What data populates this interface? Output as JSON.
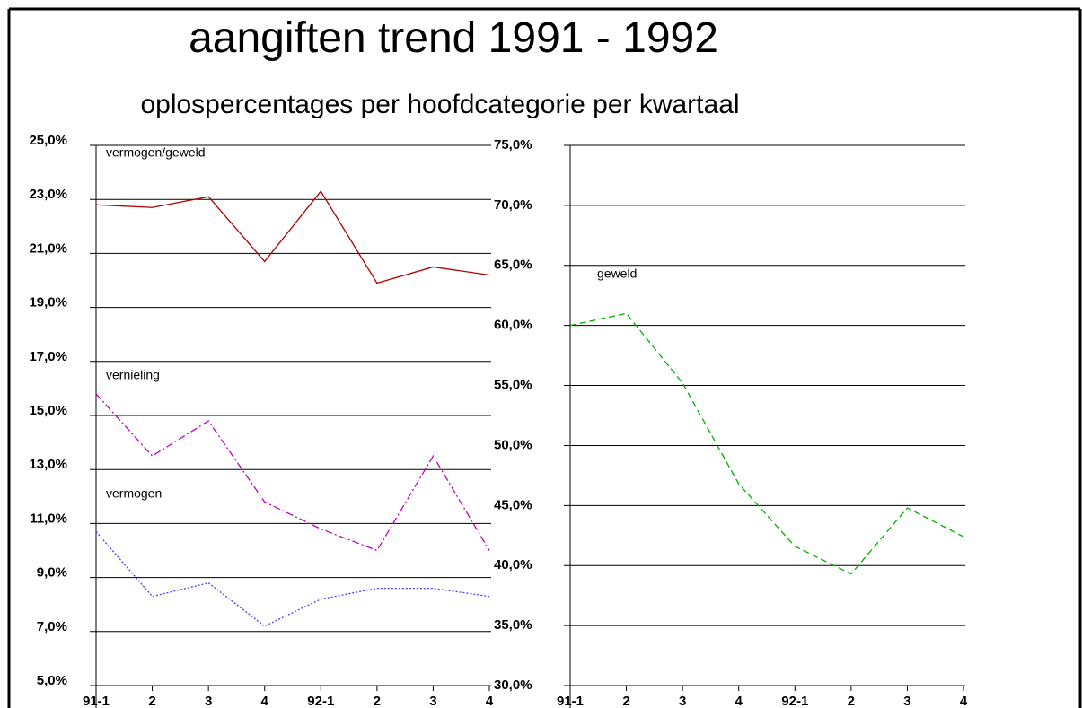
{
  "chart_data": [
    {
      "type": "line",
      "title": "aangiften trend 1991 - 1992",
      "subtitle": "oplospercentages per hoofdcategorie per kwartaal",
      "categories": [
        "91-1",
        "2",
        "3",
        "4",
        "92-1",
        "2",
        "3",
        "4"
      ],
      "ylim": [
        5,
        25
      ],
      "yticks": [
        {
          "value": 5,
          "label": "5,0%"
        },
        {
          "value": 7,
          "label": "7,0%"
        },
        {
          "value": 9,
          "label": "9,0%"
        },
        {
          "value": 11,
          "label": "11,0%"
        },
        {
          "value": 13,
          "label": "13,0%"
        },
        {
          "value": 15,
          "label": "15,0%"
        },
        {
          "value": 17,
          "label": "17,0%"
        },
        {
          "value": 19,
          "label": "19,0%"
        },
        {
          "value": 21,
          "label": "21,0%"
        },
        {
          "value": 23,
          "label": "23,0%"
        },
        {
          "value": 25,
          "label": "25,0%"
        }
      ],
      "grid": true,
      "series": [
        {
          "name": "vermogen/geweld",
          "color": "#b00000",
          "style": "solid",
          "values": [
            22.8,
            22.7,
            23.1,
            20.7,
            23.3,
            19.9,
            20.5,
            20.2
          ]
        },
        {
          "name": "vernieling",
          "color": "#c000c0",
          "style": "dashdot",
          "values": [
            15.8,
            13.5,
            14.8,
            11.8,
            10.8,
            10.0,
            13.5,
            10.0
          ]
        },
        {
          "name": "vermogen",
          "color": "#4040ff",
          "style": "dotted",
          "values": [
            10.7,
            8.3,
            8.8,
            7.2,
            8.2,
            8.6,
            8.6,
            8.3
          ]
        }
      ]
    },
    {
      "type": "line",
      "categories": [
        "91-1",
        "2",
        "3",
        "4",
        "92-1",
        "2",
        "3",
        "4"
      ],
      "ylim": [
        30,
        75
      ],
      "yticks": [
        {
          "value": 30,
          "label": "30,0%"
        },
        {
          "value": 35,
          "label": "35,0%"
        },
        {
          "value": 40,
          "label": "40,0%"
        },
        {
          "value": 45,
          "label": "45,0%"
        },
        {
          "value": 50,
          "label": "50,0%"
        },
        {
          "value": 55,
          "label": "55,0%"
        },
        {
          "value": 60,
          "label": "60,0%"
        },
        {
          "value": 65,
          "label": "65,0%"
        },
        {
          "value": 70,
          "label": "70,0%"
        },
        {
          "value": 75,
          "label": "75,0%"
        }
      ],
      "grid": true,
      "series": [
        {
          "name": "geweld",
          "color": "#00b000",
          "style": "dashed",
          "values": [
            60.0,
            61.0,
            55.2,
            46.8,
            41.6,
            39.3,
            44.8,
            42.4
          ]
        }
      ]
    }
  ]
}
